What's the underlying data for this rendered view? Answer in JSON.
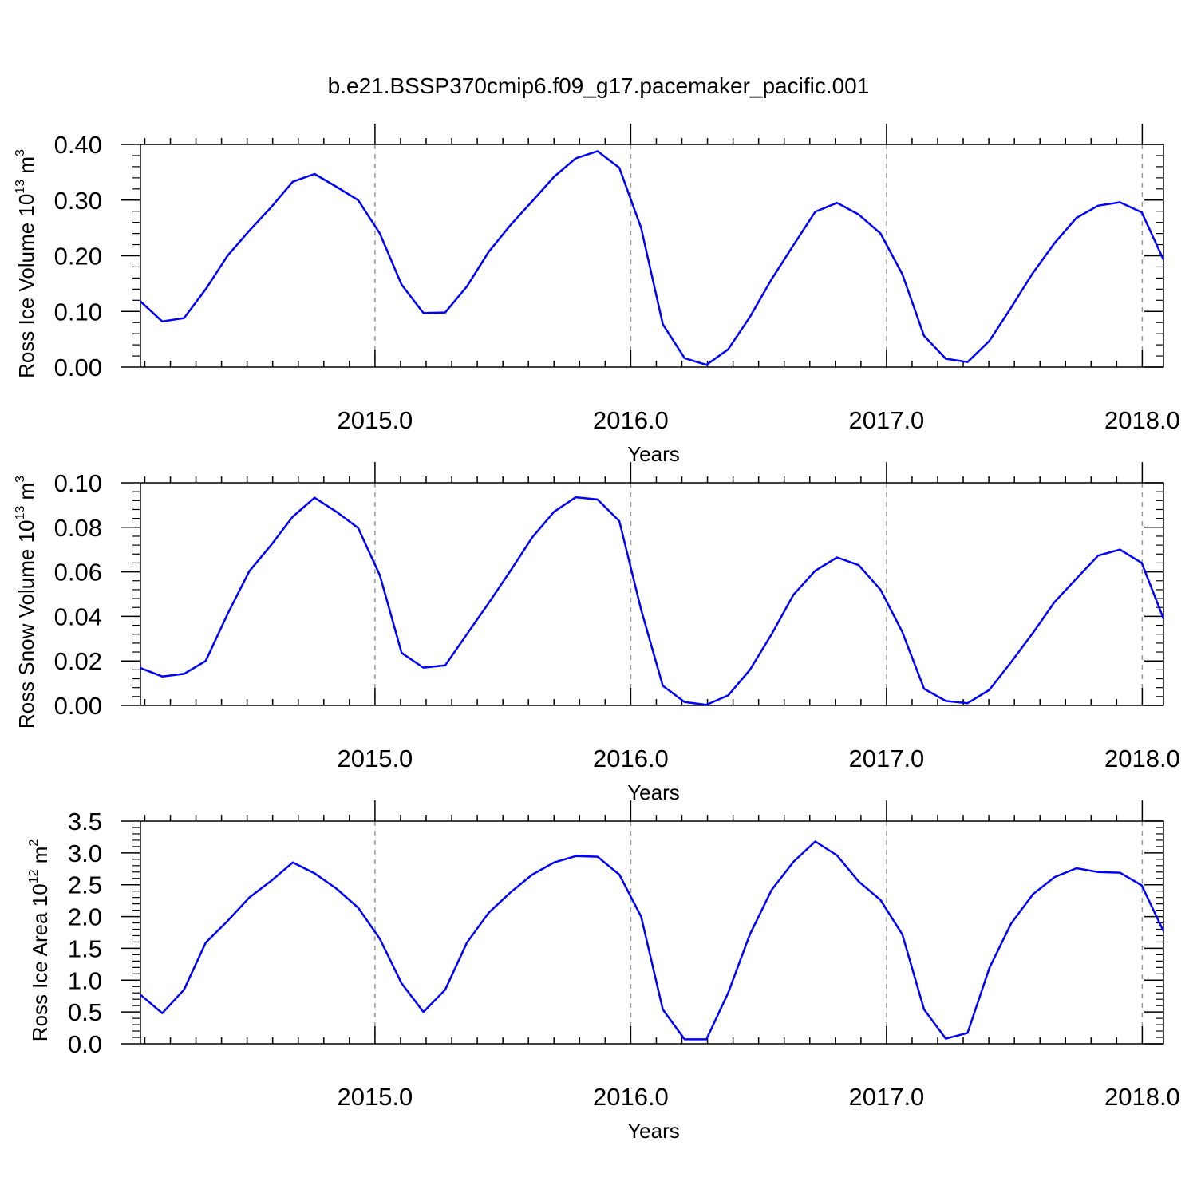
{
  "page": {
    "title": "b.e21.BSSP370cmip6.f09_g17.pacemaker_pacific.001"
  },
  "colors": {
    "line": "#0000ff",
    "axis": "#000000",
    "grid": "#999999"
  },
  "chart_data": [
    {
      "type": "line",
      "ylabel": {
        "main": "Ross Ice Volume 10",
        "sup": "13",
        "unit": " m",
        "unit_sup": "3"
      },
      "xlabel": "Years",
      "xlim": [
        2014.083,
        2018.083
      ],
      "ylim": [
        0,
        0.4
      ],
      "yticks": [
        0,
        0.1,
        0.2,
        0.3,
        0.4
      ],
      "yticklabels": [
        "0.00",
        "0.10",
        "0.20",
        "0.30",
        "0.40"
      ],
      "xticks": [
        2015,
        2016,
        2017,
        2018
      ],
      "xticklabels": [
        "2015.0",
        "2016.0",
        "2017.0",
        "2018.0"
      ],
      "grid": "vertical-dashed",
      "series": [
        {
          "values": [
            0.118,
            0.082,
            0.088,
            0.14,
            0.2,
            0.245,
            0.287,
            0.333,
            0.347,
            0.324,
            0.3,
            0.24,
            0.148,
            0.097,
            0.098,
            0.145,
            0.207,
            0.255,
            0.298,
            0.342,
            0.375,
            0.388,
            0.358,
            0.25,
            0.077,
            0.016,
            0.004,
            0.032,
            0.09,
            0.158,
            0.219,
            0.279,
            0.295,
            0.274,
            0.24,
            0.167,
            0.056,
            0.015,
            0.009,
            0.047,
            0.107,
            0.169,
            0.223,
            0.268,
            0.29,
            0.296,
            0.278,
            0.193
          ]
        }
      ]
    },
    {
      "type": "line",
      "ylabel": {
        "main": "Ross Snow Volume 10",
        "sup": "13",
        "unit": " m",
        "unit_sup": "3"
      },
      "xlabel": "Years",
      "xlim": [
        2014.083,
        2018.083
      ],
      "ylim": [
        0,
        0.1
      ],
      "yticks": [
        0,
        0.02,
        0.04,
        0.06,
        0.08,
        0.1
      ],
      "yticklabels": [
        "0.00",
        "0.02",
        "0.04",
        "0.06",
        "0.08",
        "0.10"
      ],
      "xticks": [
        2015,
        2016,
        2017,
        2018
      ],
      "xticklabels": [
        "2015.0",
        "2016.0",
        "2017.0",
        "2018.0"
      ],
      "grid": "vertical-dashed",
      "series": [
        {
          "values": [
            0.0168,
            0.013,
            0.0142,
            0.02,
            0.041,
            0.0603,
            0.072,
            0.0848,
            0.0933,
            0.087,
            0.0797,
            0.0585,
            0.0236,
            0.017,
            0.018,
            0.032,
            0.046,
            0.0605,
            0.0755,
            0.087,
            0.0935,
            0.0925,
            0.0828,
            0.043,
            0.0088,
            0.0015,
            0.0003,
            0.0045,
            0.016,
            0.032,
            0.0497,
            0.0605,
            0.0665,
            0.063,
            0.052,
            0.033,
            0.0075,
            0.002,
            0.001,
            0.007,
            0.0195,
            0.0325,
            0.0465,
            0.057,
            0.0673,
            0.07,
            0.064,
            0.039
          ]
        }
      ]
    },
    {
      "type": "line",
      "ylabel": {
        "main": "Ross Ice Area 10",
        "sup": "12",
        "unit": " m",
        "unit_sup": "2"
      },
      "xlabel": "Years",
      "xlim": [
        2014.083,
        2018.083
      ],
      "ylim": [
        0,
        3.5
      ],
      "yticks": [
        0,
        0.5,
        1.0,
        1.5,
        2.0,
        2.5,
        3.0,
        3.5
      ],
      "yticklabels": [
        "0.0",
        "0.5",
        "1.0",
        "1.5",
        "2.0",
        "2.5",
        "3.0",
        "3.5"
      ],
      "xticks": [
        2015,
        2016,
        2017,
        2018
      ],
      "xticklabels": [
        "2015.0",
        "2016.0",
        "2017.0",
        "2018.0"
      ],
      "grid": "vertical-dashed",
      "series": [
        {
          "values": [
            0.77,
            0.48,
            0.85,
            1.59,
            1.93,
            2.3,
            2.56,
            2.85,
            2.68,
            2.44,
            2.14,
            1.65,
            0.95,
            0.5,
            0.85,
            1.59,
            2.06,
            2.38,
            2.66,
            2.85,
            2.95,
            2.94,
            2.66,
            2.0,
            0.54,
            0.07,
            0.07,
            0.8,
            1.72,
            2.42,
            2.86,
            3.18,
            2.96,
            2.55,
            2.26,
            1.72,
            0.54,
            0.08,
            0.17,
            1.19,
            1.89,
            2.35,
            2.62,
            2.76,
            2.7,
            2.69,
            2.49,
            1.77
          ]
        }
      ]
    }
  ]
}
